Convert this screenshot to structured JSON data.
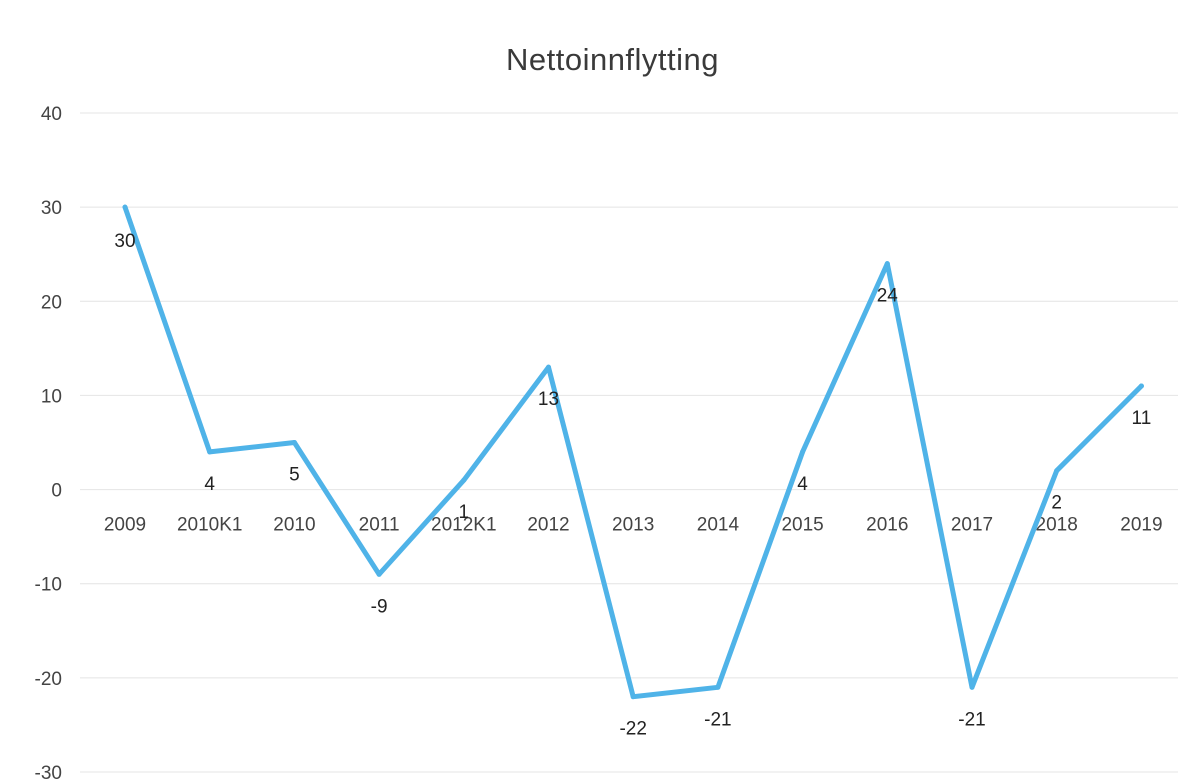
{
  "chart_data": {
    "type": "line",
    "title": "Nettoinnflytting",
    "xlabel": "",
    "ylabel": "",
    "categories": [
      "2009",
      "2010K1",
      "2010",
      "2011",
      "2012K1",
      "2012",
      "2013",
      "2014",
      "2015",
      "2016",
      "2017",
      "2018",
      "2019"
    ],
    "series": [
      {
        "values": [
          30,
          4,
          5,
          -9,
          1,
          13,
          -22,
          -21,
          4,
          24,
          -21,
          2,
          11
        ],
        "data_labels": [
          "30",
          "4",
          "5",
          "-9",
          "1",
          "13",
          "-22",
          "-21",
          "4",
          "24",
          "-21",
          "2",
          "11"
        ],
        "color": "#4fb3e8"
      }
    ],
    "ylim": [
      -30,
      40
    ],
    "yticks": [
      40,
      30,
      20,
      10,
      0,
      -10,
      -20,
      -30
    ],
    "grid": true,
    "legend": "none"
  }
}
